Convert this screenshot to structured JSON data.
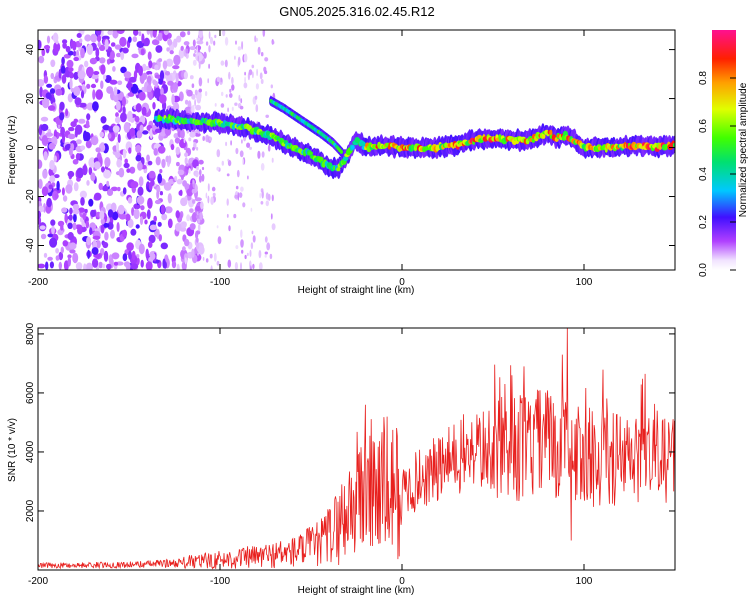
{
  "title": "GN05.2025.316.02.45.R12",
  "charts": [
    {
      "type": "heatmap",
      "xlabel": "Height of straight line (km)",
      "ylabel": "Frequency (Hz)",
      "xlim": [
        -200,
        150
      ],
      "ylim": [
        -50,
        48
      ],
      "xticks": [
        -200,
        -100,
        0,
        100
      ],
      "yticks": [
        -40,
        -20,
        0,
        20,
        40
      ],
      "noise_region_km": [
        -200,
        -120
      ],
      "faint_region_km": [
        -120,
        -70
      ],
      "main_track": {
        "x": [
          -135,
          -120,
          -100,
          -85,
          -70,
          -60,
          -50,
          -42,
          -35,
          -30,
          -25,
          -20,
          -10,
          0,
          10,
          20,
          30,
          40,
          50,
          60,
          70,
          80,
          85,
          90,
          95,
          100,
          110,
          120,
          130,
          140,
          150
        ],
        "y": [
          12,
          11,
          10,
          8,
          4,
          0,
          -3,
          -7,
          -9,
          -3,
          3,
          0,
          1,
          0,
          0,
          0,
          1,
          3,
          4,
          3,
          3,
          6,
          4,
          5,
          3,
          0,
          0,
          0,
          1,
          0,
          1
        ]
      },
      "branch_track": {
        "x": [
          -72,
          -65,
          -55,
          -45,
          -38,
          -33
        ],
        "y": [
          19,
          16,
          11,
          6,
          2,
          -2
        ]
      }
    },
    {
      "type": "line",
      "xlabel": "Height of straight line (km)",
      "ylabel": "SNR (10 * v/v)",
      "xlim": [
        -200,
        150
      ],
      "ylim": [
        0,
        8200
      ],
      "xticks": [
        -200,
        -100,
        0,
        100
      ],
      "yticks": [
        2000,
        4000,
        6000,
        8000
      ],
      "envelope": {
        "x": [
          -200,
          -150,
          -120,
          -100,
          -80,
          -60,
          -45,
          -35,
          -25,
          -20,
          -10,
          0,
          10,
          20,
          30,
          40,
          50,
          60,
          70,
          80,
          90,
          100,
          110,
          120,
          130,
          140,
          150
        ],
        "y": [
          150,
          180,
          250,
          350,
          450,
          600,
          900,
          1500,
          2500,
          2800,
          2800,
          2600,
          3100,
          3400,
          3800,
          4100,
          4000,
          4100,
          4200,
          4300,
          4100,
          3800,
          3900,
          3700,
          3700,
          3800,
          3800
        ]
      },
      "spikes": [
        {
          "x": -20,
          "y": 5600
        },
        {
          "x": 67,
          "y": 6900
        },
        {
          "x": 91,
          "y": 8200
        },
        {
          "x": 88,
          "y": 7300
        },
        {
          "x": 93,
          "y": 1000
        }
      ]
    }
  ],
  "colorbar": {
    "label": "Normalized spectral amplitude",
    "ticks": [
      "0.0",
      "0.2",
      "0.4",
      "0.6",
      "0.8"
    ],
    "range": [
      0,
      1
    ]
  }
}
